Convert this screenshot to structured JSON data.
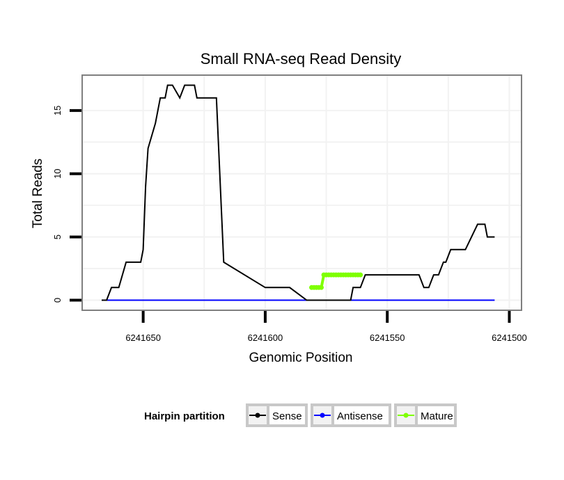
{
  "chart_data": {
    "type": "line",
    "title": "Small RNA-seq Read Density",
    "xlabel": "Genomic Position",
    "ylabel": "Total Reads",
    "xlim": [
      6241675,
      6241495
    ],
    "ylim": [
      -0.8,
      17.8
    ],
    "x_ticks": [
      {
        "value": 6241650,
        "label": "6241650"
      },
      {
        "value": 6241600,
        "label": "6241600"
      },
      {
        "value": 6241550,
        "label": "6241550"
      },
      {
        "value": 6241500,
        "label": "6241500"
      }
    ],
    "y_ticks": [
      {
        "value": 0,
        "label": "0"
      },
      {
        "value": 5,
        "label": "5"
      },
      {
        "value": 10,
        "label": "10"
      },
      {
        "value": 15,
        "label": "15"
      }
    ],
    "legend": {
      "title": "Hairpin partition",
      "position": "bottom",
      "entries": [
        {
          "label": "Sense",
          "color": "#000000"
        },
        {
          "label": "Antisense",
          "color": "#0000ff"
        },
        {
          "label": "Mature",
          "color": "#7fff00"
        }
      ]
    },
    "series": [
      {
        "name": "Sense",
        "color": "#000000",
        "x": [
          6241667,
          6241665,
          6241663,
          6241660,
          6241657,
          6241654,
          6241653,
          6241652,
          6241651,
          6241650,
          6241649,
          6241648,
          6241645,
          6241643,
          6241642,
          6241641,
          6241640,
          6241638,
          6241635,
          6241633,
          6241632,
          6241631,
          6241630,
          6241629,
          6241628,
          6241625,
          6241620,
          6241617,
          6241600,
          6241590,
          6241583,
          6241582,
          6241581,
          6241580,
          6241579,
          6241578,
          6241577,
          6241576,
          6241570,
          6241566,
          6241565,
          6241564,
          6241562,
          6241561,
          6241559,
          6241558,
          6241557,
          6241556,
          6241555,
          6241549,
          6241547,
          6241545,
          6241543,
          6241537,
          6241535,
          6241534,
          6241533,
          6241531,
          6241530,
          6241529,
          6241527,
          6241526,
          6241524,
          6241521,
          6241518,
          6241513,
          6241510,
          6241509,
          6241506
        ],
        "values": [
          0,
          0,
          1,
          1,
          3,
          3,
          3,
          3,
          3,
          4,
          9,
          12,
          14,
          16,
          16,
          16,
          17,
          17,
          16,
          17,
          17,
          17,
          17,
          17,
          16,
          16,
          16,
          3,
          1,
          1,
          0,
          0,
          0,
          0,
          0,
          0,
          0,
          0,
          0,
          0,
          0,
          1,
          1,
          1,
          2,
          2,
          2,
          2,
          2,
          2,
          2,
          2,
          2,
          2,
          1,
          1,
          1,
          2,
          2,
          2,
          3,
          3,
          4,
          4,
          4,
          6,
          6,
          5,
          5
        ]
      },
      {
        "name": "Antisense",
        "color": "#0000ff",
        "x": [
          6241667,
          6241506
        ],
        "values": [
          0,
          0
        ]
      },
      {
        "name": "Mature",
        "color": "#7fff00",
        "x": [
          6241581,
          6241580,
          6241579,
          6241578,
          6241577,
          6241576,
          6241575,
          6241574,
          6241573,
          6241572,
          6241571,
          6241570,
          6241569,
          6241568,
          6241567,
          6241566,
          6241565,
          6241564,
          6241563,
          6241562,
          6241561
        ],
        "values": [
          1,
          1,
          1,
          1,
          1,
          2,
          2,
          2,
          2,
          2,
          2,
          2,
          2,
          2,
          2,
          2,
          2,
          2,
          2,
          2,
          2
        ]
      }
    ]
  }
}
